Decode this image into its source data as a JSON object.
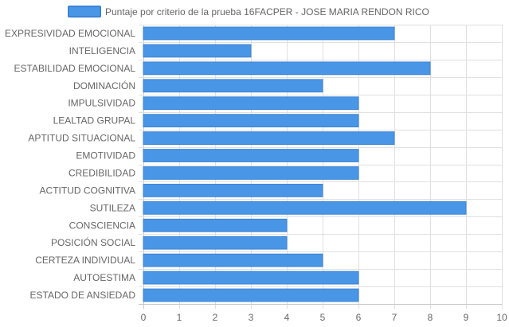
{
  "chart_data": {
    "type": "bar",
    "orientation": "horizontal",
    "categories": [
      "EXPRESIVIDAD EMOCIONAL",
      "INTELIGENCIA",
      "ESTABILIDAD EMOCIONAL",
      "DOMINACIÓN",
      "IMPULSIVIDAD",
      "LEALTAD GRUPAL",
      "APTITUD SITUACIONAL",
      "EMOTIVIDAD",
      "CREDIBILIDAD",
      "ACTITUD COGNITIVA",
      "SUTILEZA",
      "CONSCIENCIA",
      "POSICIÓN SOCIAL",
      "CERTEZA INDIVIDUAL",
      "AUTOESTIMA",
      "ESTADO DE ANSIEDAD"
    ],
    "series": [
      {
        "name": "Puntaje por criterio de la prueba 16FACPER - JOSE MARIA RENDON RICO",
        "values": [
          7,
          3,
          8,
          5,
          6,
          6,
          7,
          6,
          6,
          5,
          9,
          4,
          4,
          5,
          6,
          6
        ]
      }
    ],
    "xlim": [
      0,
      10
    ],
    "x_ticks": [
      "0",
      "1",
      "2",
      "3",
      "4",
      "5",
      "6",
      "7",
      "8",
      "9",
      "10"
    ],
    "grid": true,
    "legend_position": "top",
    "colors": {
      "bar_fill": "#4a96e6",
      "bar_border": "#3a83d6"
    }
  }
}
